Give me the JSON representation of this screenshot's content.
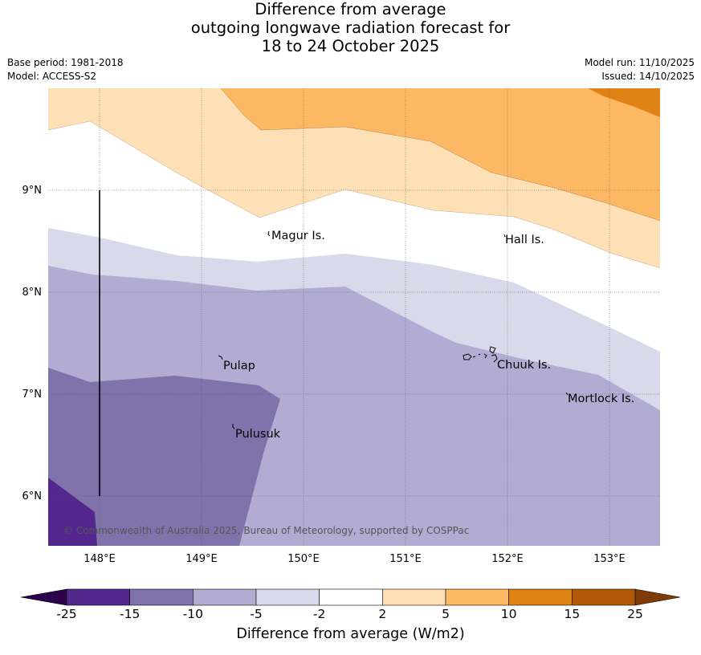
{
  "title": {
    "line1": "Difference from average",
    "line2": "outgoing longwave radiation forecast for",
    "line3": "18 to 24 October 2025"
  },
  "meta": {
    "base_period": "Base period: 1981-2018",
    "model": "Model: ACCESS-S2",
    "model_run": "Model run: 11/10/2025",
    "issued": "Issued: 14/10/2025"
  },
  "map": {
    "lat_labels": [
      "9°N",
      "8°N",
      "7°N",
      "6°N"
    ],
    "lon_labels": [
      "148°E",
      "149°E",
      "150°E",
      "151°E",
      "152°E",
      "153°E"
    ],
    "places": [
      "Magur Is.",
      "Hall Is.",
      "Pulap",
      "Chuuk Is.",
      "Mortlock Is.",
      "Pulusuk"
    ],
    "copyright": "© Commonwealth of Australia 2025, Bureau of Meteorology, supported by COSPPac"
  },
  "colorbar": {
    "title": "Difference from average (W/m2)",
    "ticks": [
      "-25",
      "-15",
      "-10",
      "-5",
      "-2",
      "2",
      "5",
      "10",
      "15",
      "25"
    ],
    "colors": [
      "#54278f",
      "#8073ac",
      "#b2abd2",
      "#d8daeb",
      "#ffffff",
      "#fee0b6",
      "#fdb863",
      "#e08214",
      "#b35806"
    ],
    "under_color": "#2d004b",
    "over_color": "#7f3b08"
  }
}
